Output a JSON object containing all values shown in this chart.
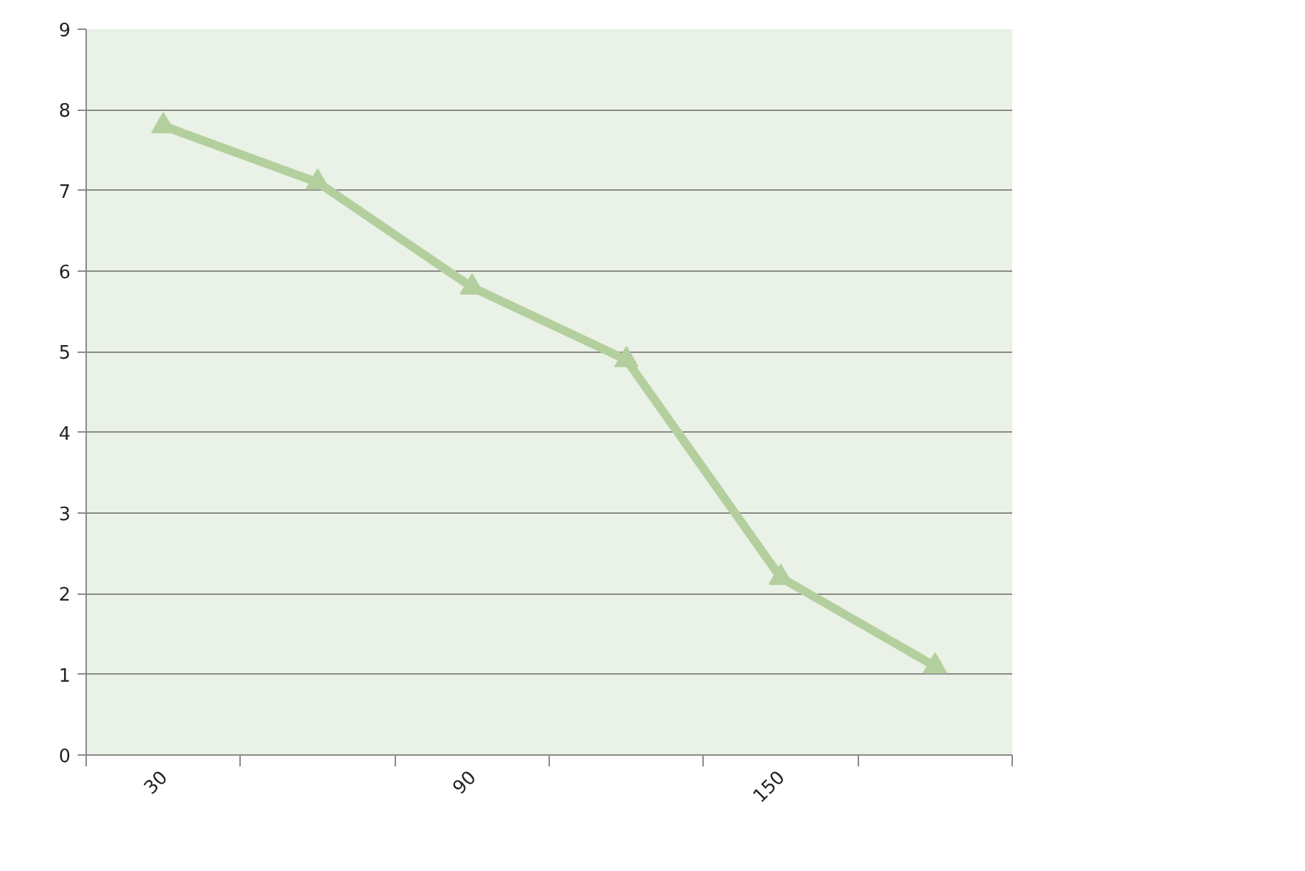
{
  "chart_data": {
    "type": "line",
    "categories": [
      "30",
      null,
      "90",
      null,
      "150",
      null
    ],
    "series": [
      {
        "color": "#b3cf9e",
        "values": [
          7.8,
          7.1,
          5.8,
          4.9,
          2.2,
          1.1
        ]
      }
    ],
    "ylim": [
      0,
      9
    ],
    "yticks": [
      0,
      1,
      2,
      3,
      4,
      5,
      6,
      7,
      8,
      9
    ],
    "grid": "y",
    "marker": "triangle",
    "line_style": "solid"
  }
}
